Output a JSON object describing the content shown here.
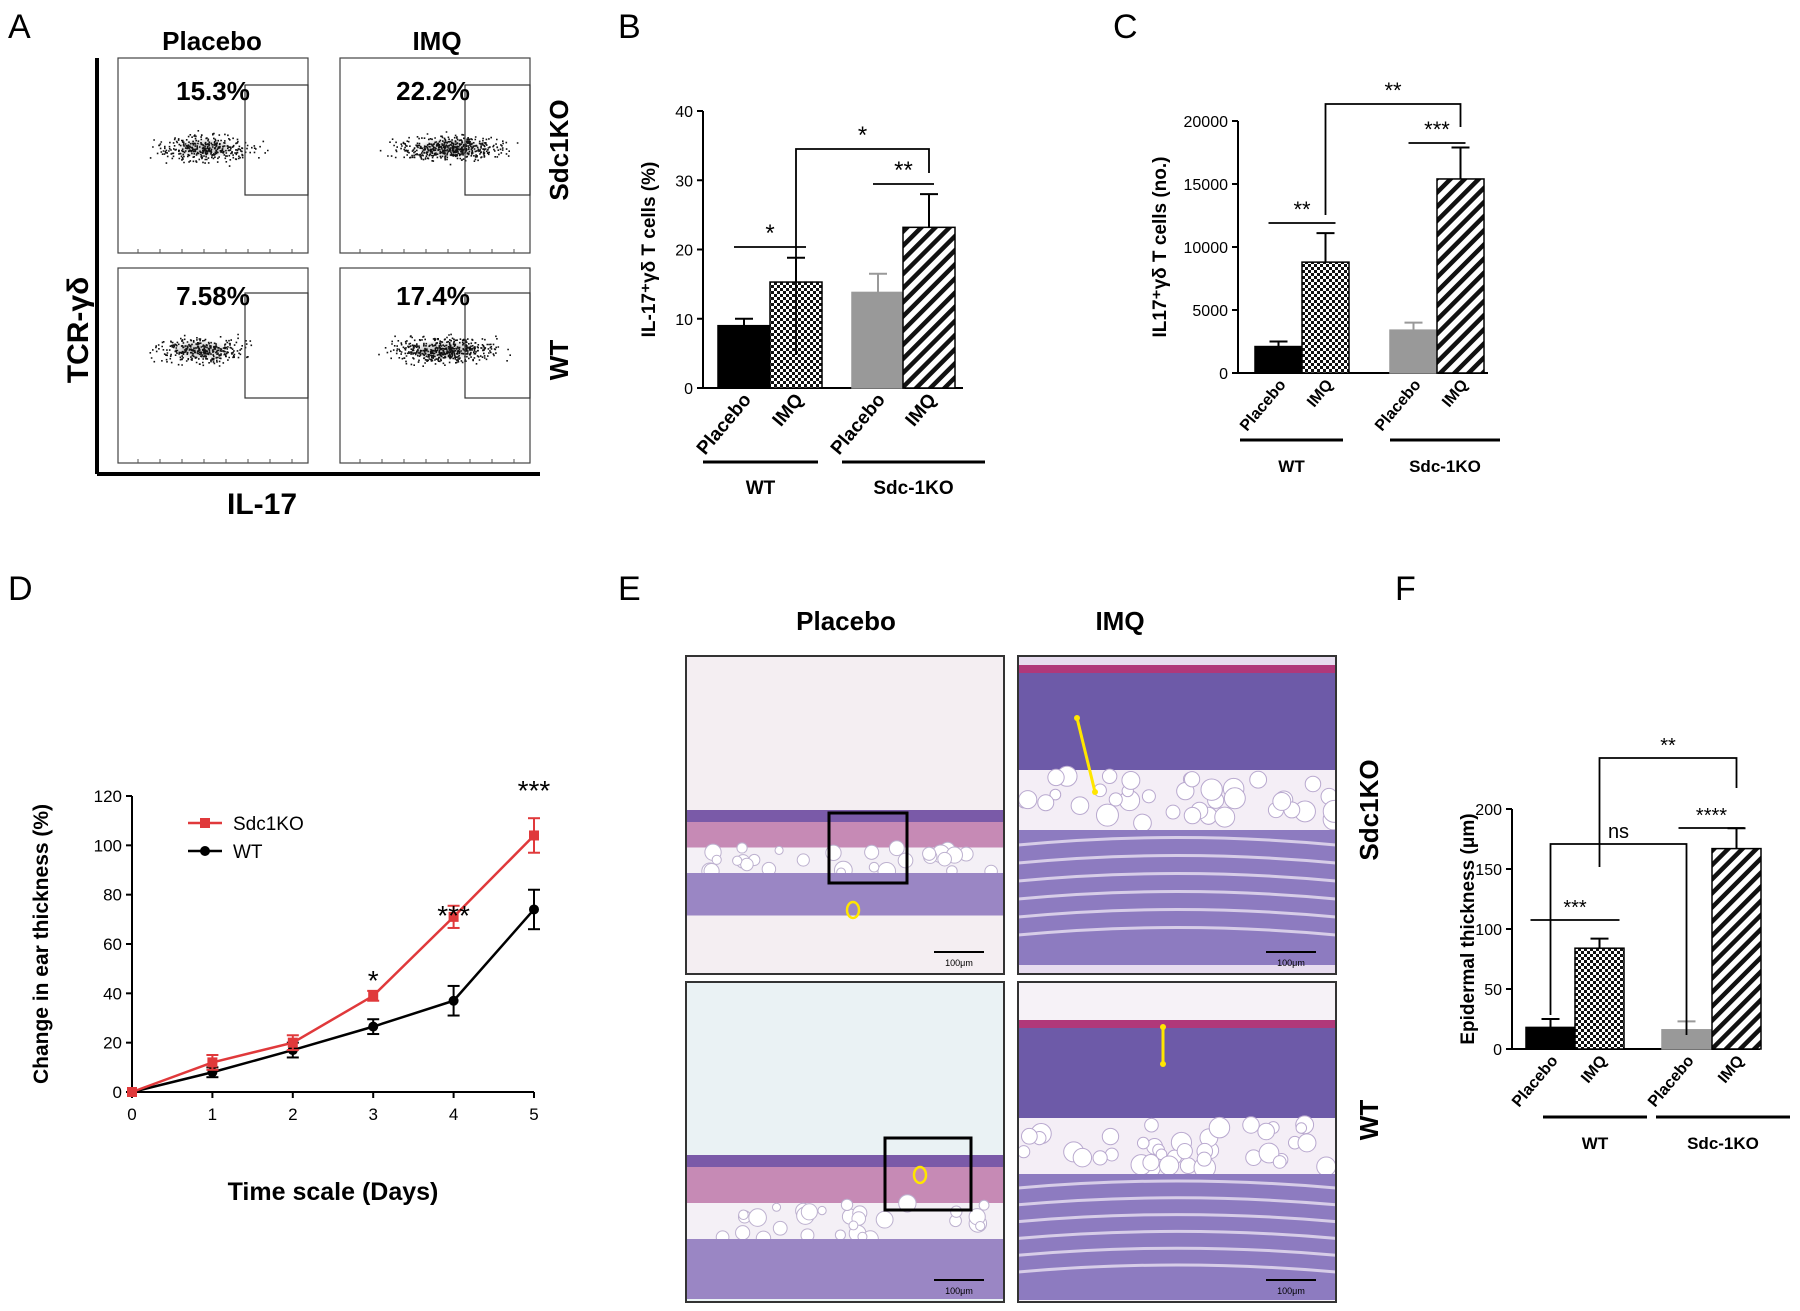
{
  "panel_letters": [
    "A",
    "B",
    "C",
    "D",
    "E",
    "F"
  ],
  "panelA": {
    "col_headers": [
      "Placebo",
      "IMQ"
    ],
    "row_labels": [
      "Sdc1KO",
      "WT"
    ],
    "percentages": [
      "15.3%",
      "22.2%",
      "7.58%",
      "17.4%"
    ],
    "ylabel": "TCR-γδ",
    "xlabel": "IL-17"
  },
  "panelE": {
    "col_headers": [
      "Placebo",
      "IMQ"
    ],
    "row_labels": [
      "Sdc1KO",
      "WT"
    ],
    "scale_bar": "100μm"
  },
  "chart_data": [
    {
      "panel": "B",
      "type": "bar",
      "ylabel": "IL-17⁺γδ T cells (%)",
      "ylim": [
        0,
        40
      ],
      "yticks": [
        0,
        10,
        20,
        30,
        40
      ],
      "categories": [
        "Placebo",
        "IMQ",
        "Placebo",
        "IMQ"
      ],
      "groups": [
        "WT",
        "Sdc-1KO"
      ],
      "values": [
        9,
        15.3,
        13.8,
        23.2
      ],
      "errors": [
        1.0,
        3.5,
        2.7,
        4.8
      ],
      "fills": [
        "black",
        "checker",
        "gray",
        "hatch"
      ],
      "sig": [
        {
          "from": 0,
          "to": 1,
          "label": "*"
        },
        {
          "from": 2,
          "to": 3,
          "label": "**"
        },
        {
          "from": 1,
          "to": 3,
          "label": "*"
        }
      ]
    },
    {
      "panel": "C",
      "type": "bar",
      "ylabel": "IL17⁺γδ T cells (no.)",
      "ylim": [
        0,
        20000
      ],
      "yticks": [
        0,
        5000,
        10000,
        15000,
        20000
      ],
      "categories": [
        "Placebo",
        "IMQ",
        "Placebo",
        "IMQ"
      ],
      "groups": [
        "WT",
        "Sdc-1KO"
      ],
      "values": [
        2100,
        8800,
        3400,
        15400
      ],
      "errors": [
        400,
        2300,
        600,
        2500
      ],
      "fills": [
        "black",
        "checker",
        "gray",
        "hatch"
      ],
      "sig": [
        {
          "from": 0,
          "to": 1,
          "label": "**"
        },
        {
          "from": 2,
          "to": 3,
          "label": "***"
        },
        {
          "from": 1,
          "to": 3,
          "label": "**"
        }
      ]
    },
    {
      "panel": "D",
      "type": "line",
      "xlabel": "Time scale (Days)",
      "ylabel": "Change in ear thickness (%)",
      "xlim": [
        0,
        5
      ],
      "ylim": [
        0,
        120
      ],
      "xticks": [
        0,
        1,
        2,
        3,
        4,
        5
      ],
      "yticks": [
        0,
        20,
        40,
        60,
        80,
        100,
        120
      ],
      "legend_position": "top-left",
      "x": [
        0,
        1,
        2,
        3,
        4,
        5
      ],
      "series": [
        {
          "name": "Sdc1KO",
          "color": "#e0393b",
          "marker": "square",
          "values": [
            0,
            12,
            20,
            39,
            71,
            104
          ],
          "errors": [
            0,
            3,
            3,
            2,
            4.5,
            7
          ]
        },
        {
          "name": "WT",
          "color": "#000000",
          "marker": "circle",
          "values": [
            0,
            8,
            17,
            26.5,
            37,
            74
          ],
          "errors": [
            0,
            2,
            3,
            3,
            6,
            8
          ]
        }
      ],
      "annotations": [
        {
          "x": 3,
          "label": "*"
        },
        {
          "x": 4,
          "label": "***"
        },
        {
          "x": 5,
          "label": "***"
        }
      ]
    },
    {
      "panel": "F",
      "type": "bar",
      "ylabel": "Epidermal thickness (μm)",
      "ylim": [
        0,
        200
      ],
      "yticks": [
        0,
        50,
        100,
        150,
        200
      ],
      "categories": [
        "Placebo",
        "IMQ",
        "Placebo",
        "IMQ"
      ],
      "groups": [
        "WT",
        "Sdc-1KO"
      ],
      "values": [
        18,
        84,
        16,
        167
      ],
      "errors": [
        7,
        8,
        7,
        17
      ],
      "fills": [
        "black",
        "checker",
        "gray",
        "hatch"
      ],
      "sig": [
        {
          "from": 0,
          "to": 1,
          "label": "***"
        },
        {
          "from": 2,
          "to": 3,
          "label": "****"
        },
        {
          "from": 0,
          "to": 2,
          "label": "ns"
        },
        {
          "from": 1,
          "to": 3,
          "label": "**"
        }
      ]
    }
  ]
}
